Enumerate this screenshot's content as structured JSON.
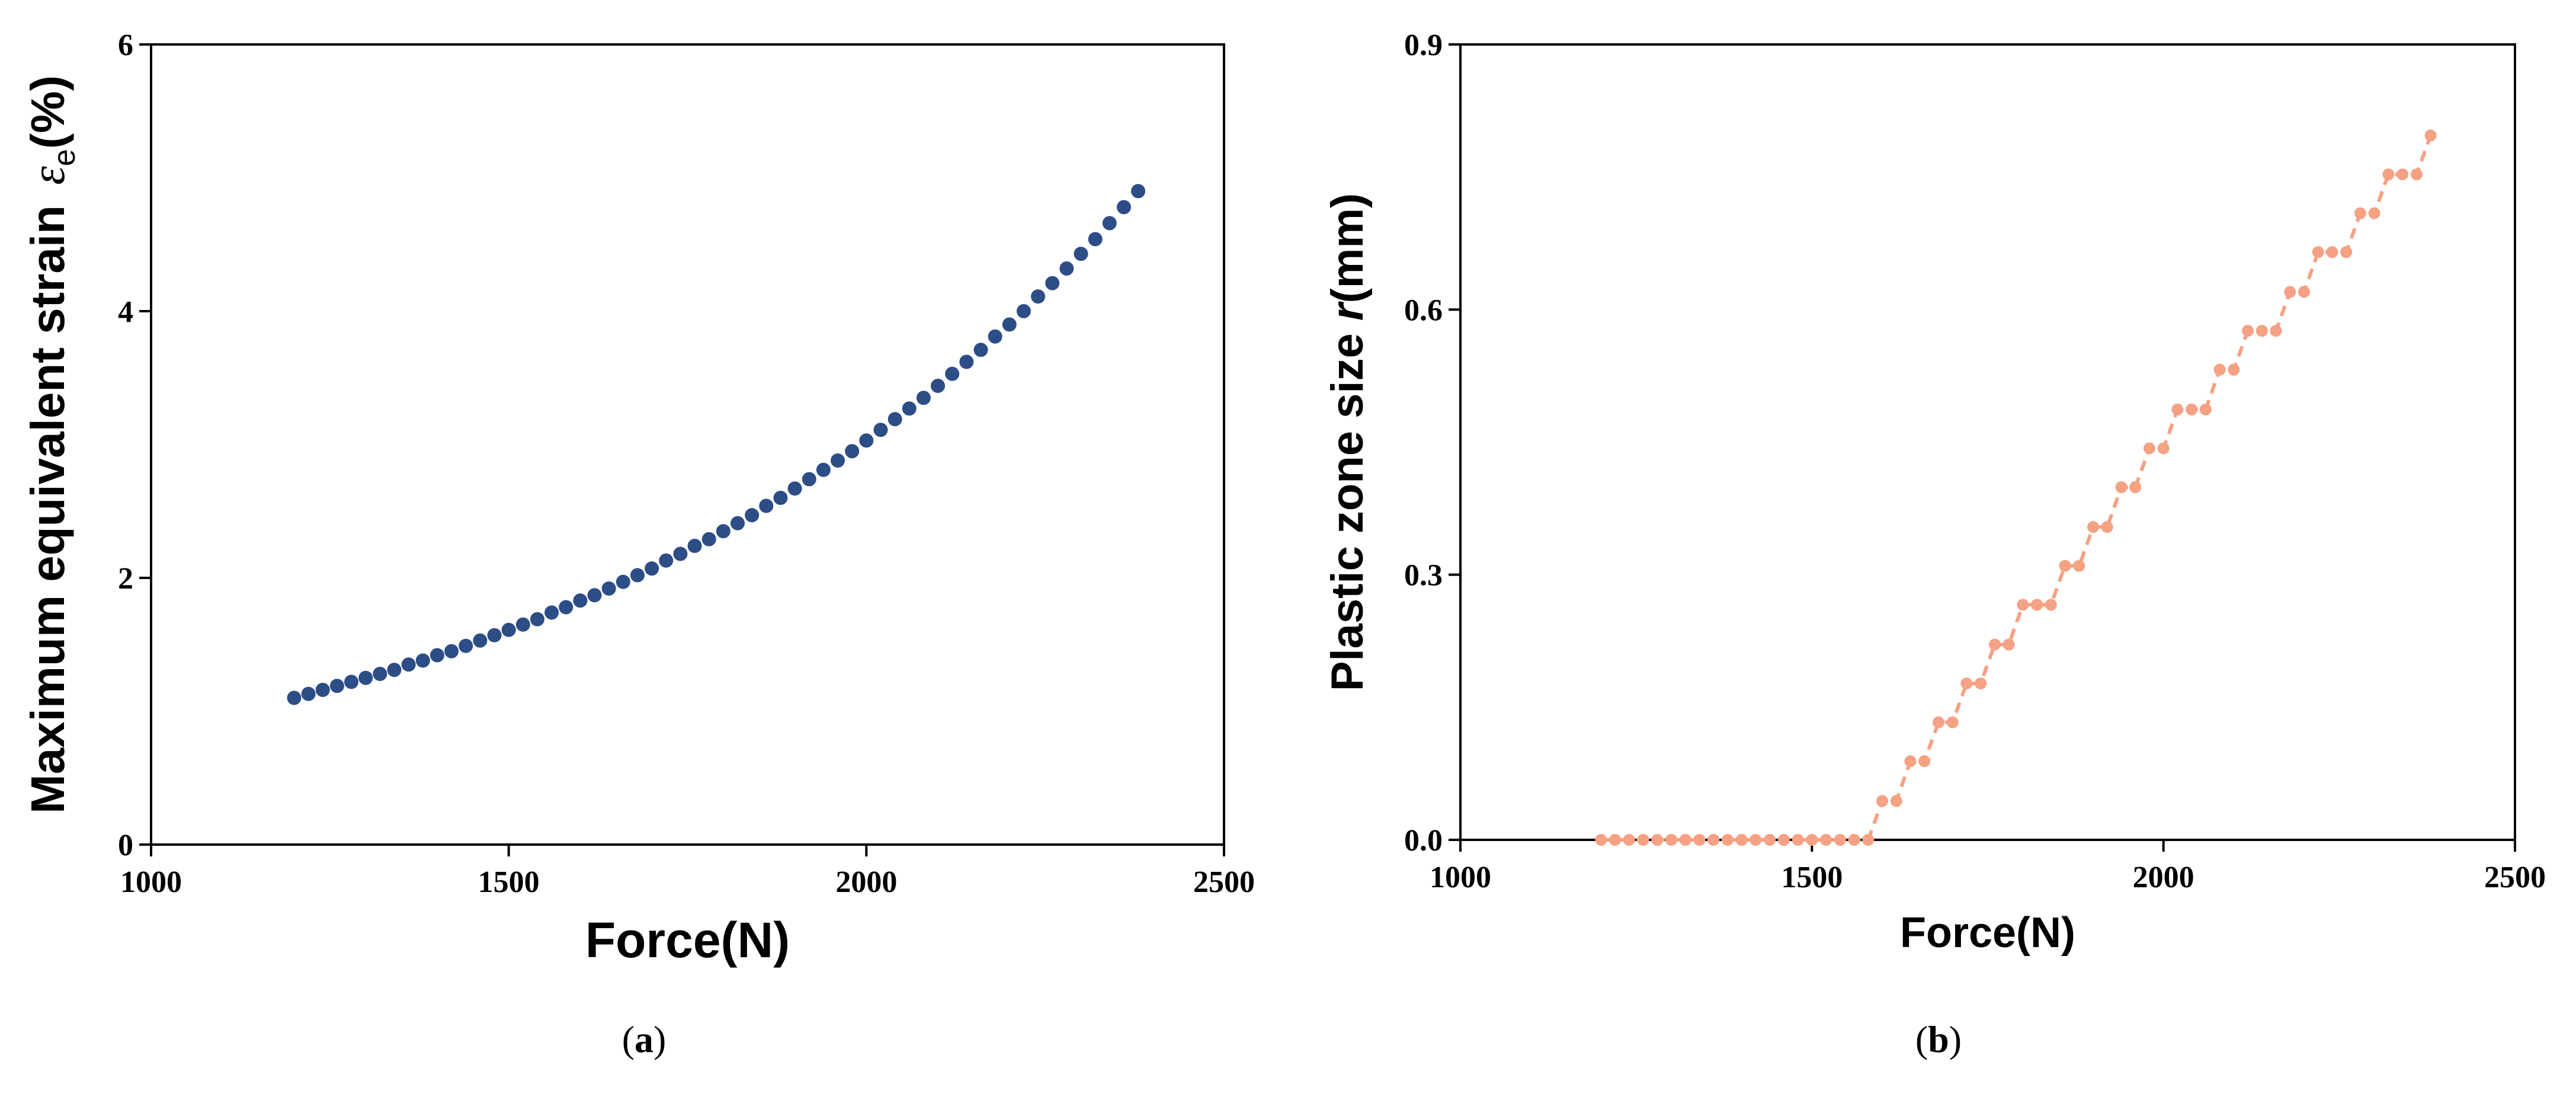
{
  "chart_data": [
    {
      "type": "scatter",
      "caption": "a",
      "xlabel": "Force(N)",
      "ylabel": [
        "Maximum equivalent strain ",
        "ε",
        "e",
        "(%)"
      ],
      "x": [
        1200,
        1220,
        1240,
        1260,
        1280,
        1300,
        1320,
        1340,
        1360,
        1380,
        1400,
        1420,
        1440,
        1460,
        1480,
        1500,
        1520,
        1540,
        1560,
        1580,
        1600,
        1620,
        1640,
        1660,
        1680,
        1700,
        1720,
        1740,
        1760,
        1780,
        1800,
        1820,
        1840,
        1860,
        1880,
        1900,
        1920,
        1940,
        1960,
        1980,
        2000,
        2020,
        2040,
        2060,
        2080,
        2100,
        2120,
        2140,
        2160,
        2180,
        2200,
        2220,
        2240,
        2260,
        2280,
        2300,
        2320,
        2340,
        2360,
        2380
      ],
      "values": [
        1.1,
        1.13,
        1.16,
        1.19,
        1.22,
        1.25,
        1.28,
        1.31,
        1.35,
        1.38,
        1.42,
        1.45,
        1.49,
        1.53,
        1.57,
        1.61,
        1.65,
        1.69,
        1.74,
        1.78,
        1.83,
        1.87,
        1.92,
        1.97,
        2.02,
        2.07,
        2.13,
        2.18,
        2.24,
        2.29,
        2.35,
        2.41,
        2.47,
        2.54,
        2.6,
        2.67,
        2.74,
        2.81,
        2.88,
        2.95,
        3.03,
        3.11,
        3.19,
        3.27,
        3.35,
        3.44,
        3.53,
        3.62,
        3.71,
        3.81,
        3.9,
        4.0,
        4.11,
        4.21,
        4.32,
        4.43,
        4.54,
        4.66,
        4.78,
        4.9
      ],
      "color": "#2d4d87",
      "xlim": [
        1000,
        2500
      ],
      "xticks": [
        1000,
        1500,
        2000,
        2500
      ],
      "ylim": [
        0,
        6
      ],
      "yticks": [
        0,
        2,
        4,
        6
      ]
    },
    {
      "type": "line",
      "caption": "b",
      "xlabel": "Force(N)",
      "ylabel": [
        "Plastic zone size ",
        "r",
        "(mm)"
      ],
      "x": [
        1200,
        1220,
        1240,
        1260,
        1280,
        1300,
        1320,
        1340,
        1360,
        1380,
        1400,
        1420,
        1440,
        1460,
        1480,
        1500,
        1520,
        1540,
        1560,
        1580,
        1600,
        1620,
        1640,
        1660,
        1680,
        1700,
        1720,
        1740,
        1760,
        1780,
        1800,
        1820,
        1840,
        1860,
        1880,
        1900,
        1920,
        1940,
        1960,
        1980,
        2000,
        2020,
        2040,
        2060,
        2080,
        2100,
        2120,
        2140,
        2160,
        2180,
        2200,
        2220,
        2240,
        2260,
        2280,
        2300,
        2320,
        2340,
        2360,
        2380
      ],
      "values": [
        0,
        0,
        0,
        0,
        0,
        0,
        0,
        0,
        0,
        0,
        0,
        0,
        0,
        0,
        0,
        0,
        0,
        0,
        0,
        0,
        0.044,
        0.044,
        0.089,
        0.089,
        0.133,
        0.133,
        0.177,
        0.177,
        0.221,
        0.221,
        0.266,
        0.266,
        0.266,
        0.31,
        0.31,
        0.354,
        0.354,
        0.399,
        0.399,
        0.443,
        0.443,
        0.487,
        0.487,
        0.487,
        0.532,
        0.532,
        0.576,
        0.576,
        0.576,
        0.62,
        0.62,
        0.665,
        0.665,
        0.665,
        0.709,
        0.709,
        0.753,
        0.753,
        0.753,
        0.797
      ],
      "color": "#f5a183",
      "linestyle": "dashed",
      "xlim": [
        1000,
        2500
      ],
      "xticks": [
        1000,
        1500,
        2000,
        2500
      ],
      "ylim": [
        0,
        0.9
      ],
      "yticks": [
        {
          "value": 0,
          "label": "0.0"
        },
        0.3,
        0.6,
        0.9
      ]
    }
  ]
}
